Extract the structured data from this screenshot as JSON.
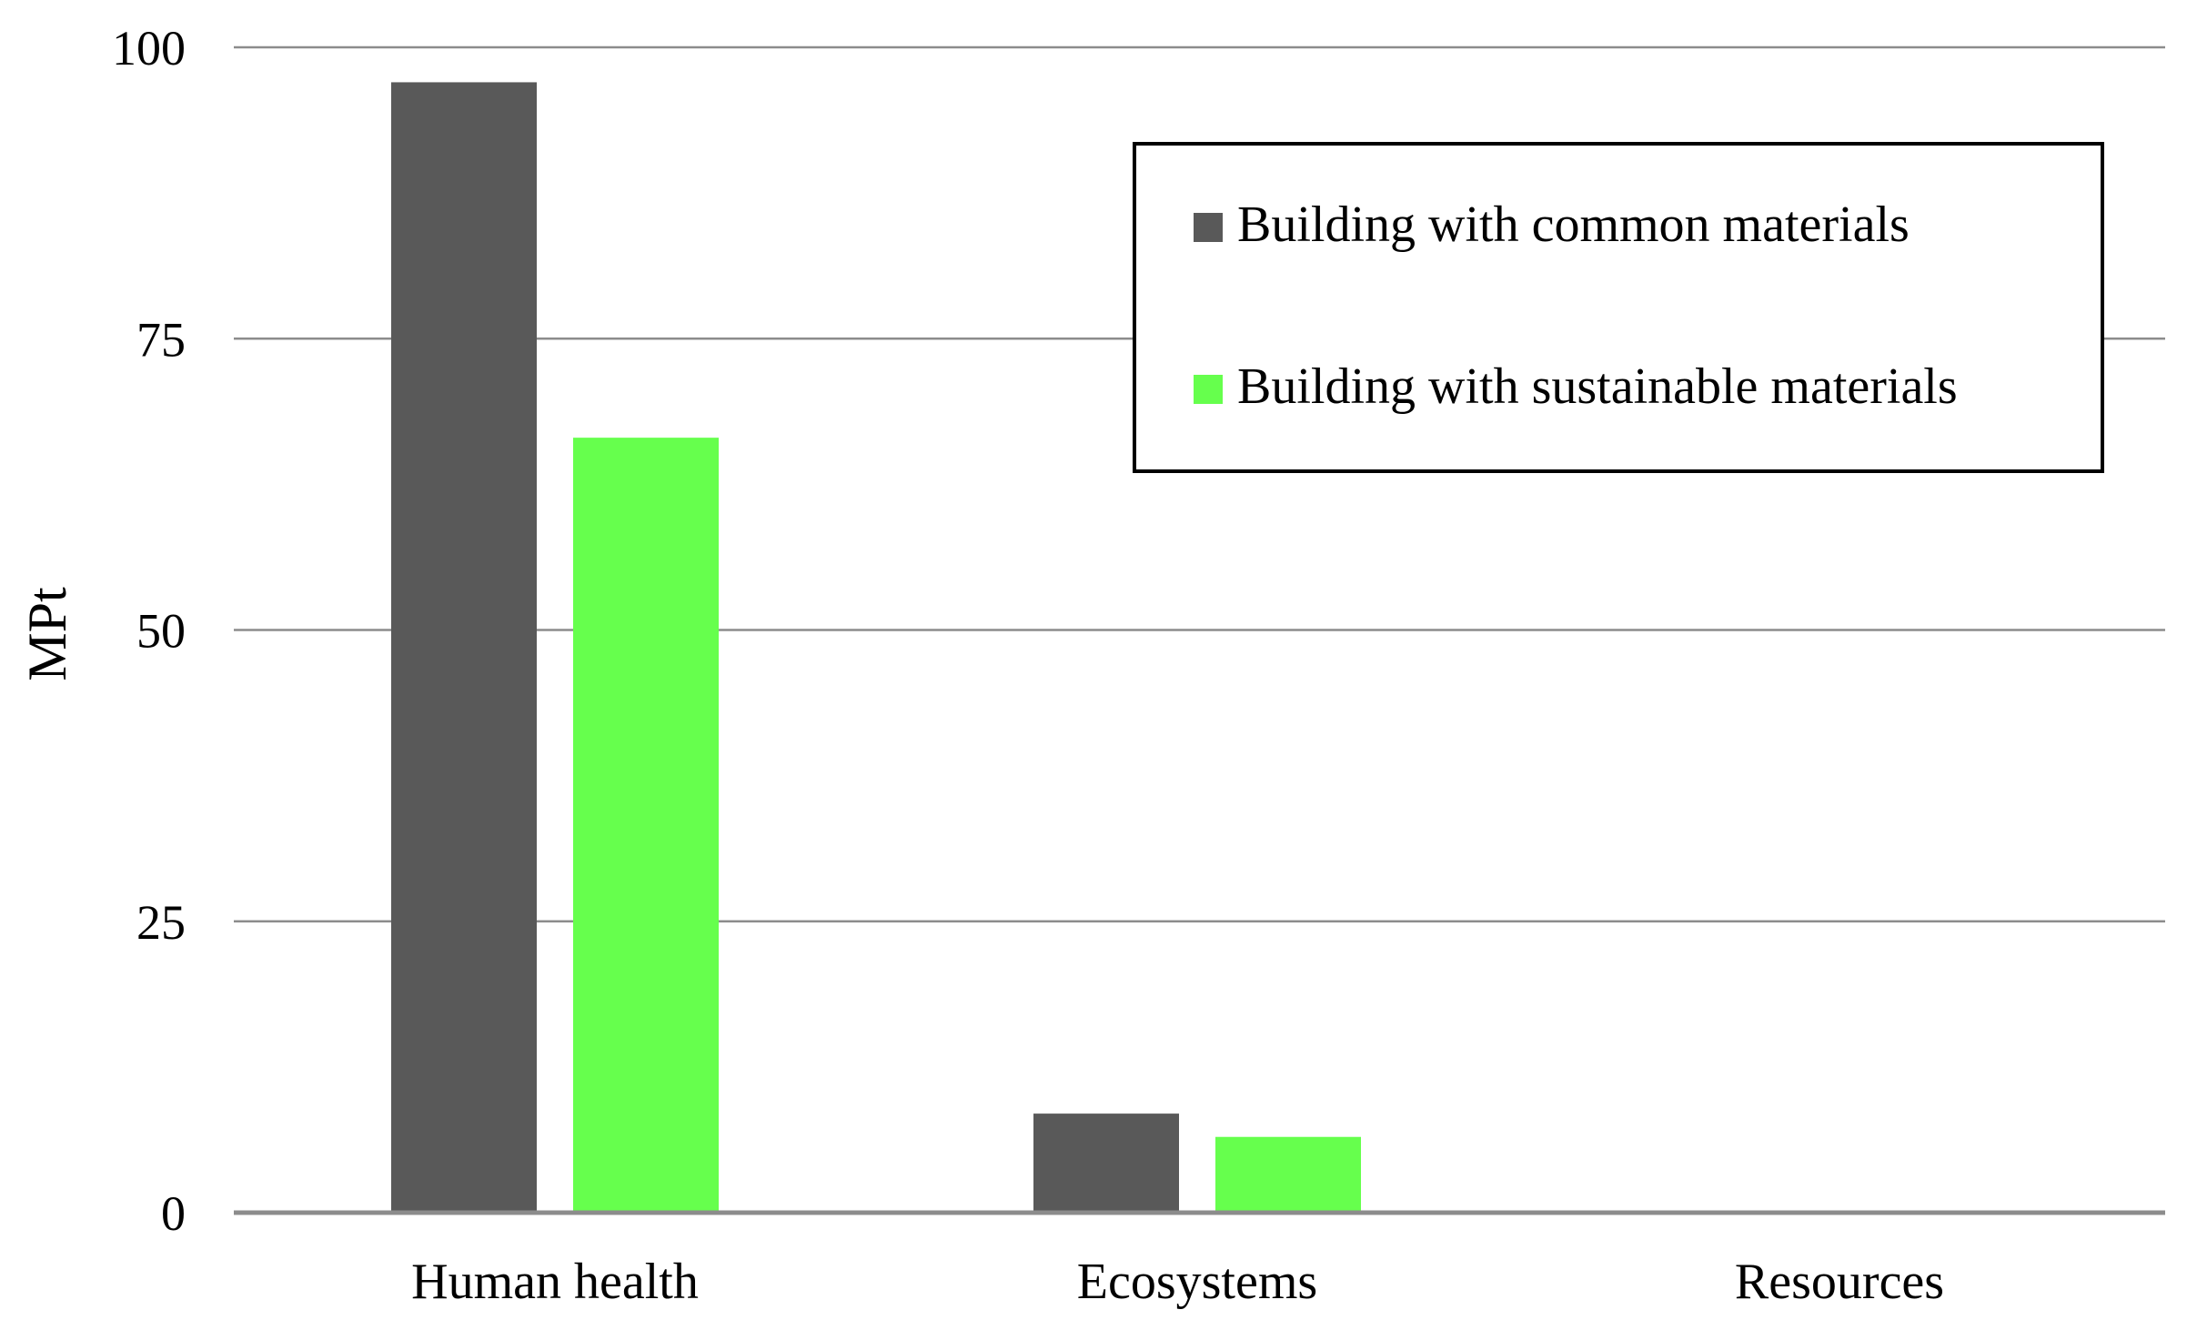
{
  "chart_data": {
    "type": "bar",
    "categories": [
      "Human health",
      "Ecosystems",
      "Resources"
    ],
    "series": [
      {
        "name": "Building with common materials",
        "color": "#595959",
        "values": [
          97,
          8.5,
          0
        ]
      },
      {
        "name": "Building with sustainable materials",
        "color": "#66ff4d",
        "values": [
          66.5,
          6.5,
          0
        ]
      }
    ],
    "title": "",
    "xlabel": "",
    "ylabel": "MPt",
    "ylim": [
      0,
      100
    ],
    "yticks": [
      "0",
      "25",
      "50",
      "75",
      "100"
    ],
    "grid": true,
    "legend_position": "top-right"
  }
}
